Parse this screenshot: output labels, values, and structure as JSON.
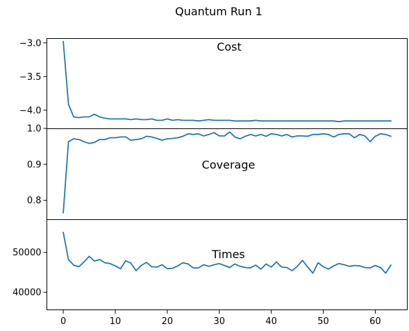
{
  "figure": {
    "suptitle": "Quantum Run 1",
    "line_color": "#1f77b4"
  },
  "chart_data": [
    {
      "type": "line",
      "title": "Cost",
      "xlabel": "",
      "ylabel": "",
      "xlim": [
        -3.15,
        66.15
      ],
      "ylim": [
        -4.27,
        -2.93
      ],
      "xticks": [
        0,
        10,
        20,
        30,
        40,
        50,
        60
      ],
      "xtick_labels": [],
      "yticks": [
        -3.0,
        -3.5,
        -4.0
      ],
      "ytick_labels": [
        "−3.0",
        "−3.5",
        "−4.0"
      ],
      "grid": false,
      "series": [
        {
          "x": [
            0,
            1,
            2,
            3,
            4,
            5,
            6,
            7,
            8,
            9,
            10,
            11,
            12,
            13,
            14,
            15,
            16,
            17,
            18,
            19,
            20,
            21,
            22,
            23,
            24,
            25,
            26,
            27,
            28,
            29,
            30,
            31,
            32,
            33,
            34,
            35,
            36,
            37,
            38,
            39,
            40,
            41,
            42,
            43,
            44,
            45,
            46,
            47,
            48,
            49,
            50,
            51,
            52,
            53,
            54,
            55,
            56,
            57,
            58,
            59,
            60,
            61,
            62,
            63
          ],
          "y": [
            -2.98,
            -3.91,
            -4.1,
            -4.11,
            -4.1,
            -4.1,
            -4.06,
            -4.1,
            -4.12,
            -4.13,
            -4.13,
            -4.13,
            -4.13,
            -4.14,
            -4.13,
            -4.14,
            -4.14,
            -4.13,
            -4.15,
            -4.15,
            -4.13,
            -4.15,
            -4.14,
            -4.15,
            -4.15,
            -4.15,
            -4.16,
            -4.15,
            -4.14,
            -4.15,
            -4.15,
            -4.15,
            -4.15,
            -4.16,
            -4.16,
            -4.16,
            -4.16,
            -4.15,
            -4.16,
            -4.16,
            -4.16,
            -4.16,
            -4.16,
            -4.16,
            -4.16,
            -4.16,
            -4.16,
            -4.16,
            -4.16,
            -4.16,
            -4.16,
            -4.16,
            -4.16,
            -4.17,
            -4.16,
            -4.16,
            -4.16,
            -4.16,
            -4.16,
            -4.16,
            -4.16,
            -4.16,
            -4.16,
            -4.16
          ]
        }
      ]
    },
    {
      "type": "line",
      "title": "Coverage",
      "xlabel": "",
      "ylabel": "",
      "xlim": [
        -3.15,
        66.15
      ],
      "ylim": [
        0.747,
        1.0
      ],
      "xticks": [
        0,
        10,
        20,
        30,
        40,
        50,
        60
      ],
      "xtick_labels": [],
      "yticks": [
        1.0,
        0.9,
        0.8
      ],
      "ytick_labels": [
        "1.0",
        "0.9",
        "0.8"
      ],
      "grid": false,
      "series": [
        {
          "x": [
            0,
            1,
            2,
            3,
            4,
            5,
            6,
            7,
            8,
            9,
            10,
            11,
            12,
            13,
            14,
            15,
            16,
            17,
            18,
            19,
            20,
            21,
            22,
            23,
            24,
            25,
            26,
            27,
            28,
            29,
            30,
            31,
            32,
            33,
            34,
            35,
            36,
            37,
            38,
            39,
            40,
            41,
            42,
            43,
            44,
            45,
            46,
            47,
            48,
            49,
            50,
            51,
            52,
            53,
            54,
            55,
            56,
            57,
            58,
            59,
            60,
            61,
            62,
            63
          ],
          "y": [
            0.765,
            0.963,
            0.971,
            0.969,
            0.963,
            0.958,
            0.961,
            0.969,
            0.969,
            0.974,
            0.974,
            0.976,
            0.976,
            0.967,
            0.969,
            0.971,
            0.978,
            0.976,
            0.972,
            0.967,
            0.971,
            0.972,
            0.974,
            0.978,
            0.985,
            0.983,
            0.985,
            0.979,
            0.983,
            0.988,
            0.979,
            0.979,
            0.99,
            0.976,
            0.971,
            0.978,
            0.983,
            0.979,
            0.983,
            0.978,
            0.985,
            0.983,
            0.979,
            0.983,
            0.976,
            0.979,
            0.979,
            0.978,
            0.983,
            0.983,
            0.985,
            0.983,
            0.976,
            0.983,
            0.985,
            0.985,
            0.974,
            0.983,
            0.979,
            0.963,
            0.978,
            0.985,
            0.983,
            0.978
          ]
        }
      ]
    },
    {
      "type": "line",
      "title": "Times",
      "xlabel": "",
      "ylabel": "",
      "xlim": [
        -3.15,
        66.15
      ],
      "ylim": [
        35500,
        58300
      ],
      "xticks": [
        0,
        10,
        20,
        30,
        40,
        50,
        60
      ],
      "xtick_labels": [
        "0",
        "10",
        "20",
        "30",
        "40",
        "50",
        "60"
      ],
      "yticks": [
        50000,
        40000
      ],
      "ytick_labels": [
        "50000",
        "40000"
      ],
      "grid": false,
      "series": [
        {
          "x": [
            0,
            1,
            2,
            3,
            4,
            5,
            6,
            7,
            8,
            9,
            10,
            11,
            12,
            13,
            14,
            15,
            16,
            17,
            18,
            19,
            20,
            21,
            22,
            23,
            24,
            25,
            26,
            27,
            28,
            29,
            30,
            31,
            32,
            33,
            34,
            35,
            36,
            37,
            38,
            39,
            40,
            41,
            42,
            43,
            44,
            45,
            46,
            47,
            48,
            49,
            50,
            51,
            52,
            53,
            54,
            55,
            56,
            57,
            58,
            59,
            60,
            61,
            62,
            63
          ],
          "y": [
            55000,
            48200,
            46800,
            46400,
            47600,
            49000,
            47800,
            48200,
            47400,
            47200,
            46600,
            45900,
            47900,
            47300,
            45400,
            46700,
            47500,
            46400,
            46300,
            46900,
            45900,
            46000,
            46600,
            47400,
            47100,
            46100,
            46100,
            46900,
            46500,
            46900,
            47200,
            46700,
            46200,
            47100,
            46500,
            46200,
            46100,
            46800,
            45800,
            47100,
            46300,
            47600,
            46300,
            46200,
            45400,
            46500,
            48000,
            46300,
            44800,
            47400,
            46400,
            45800,
            46600,
            47200,
            46900,
            46500,
            46700,
            46600,
            46200,
            46100,
            46700,
            46200,
            44800,
            46800
          ]
        }
      ]
    }
  ]
}
